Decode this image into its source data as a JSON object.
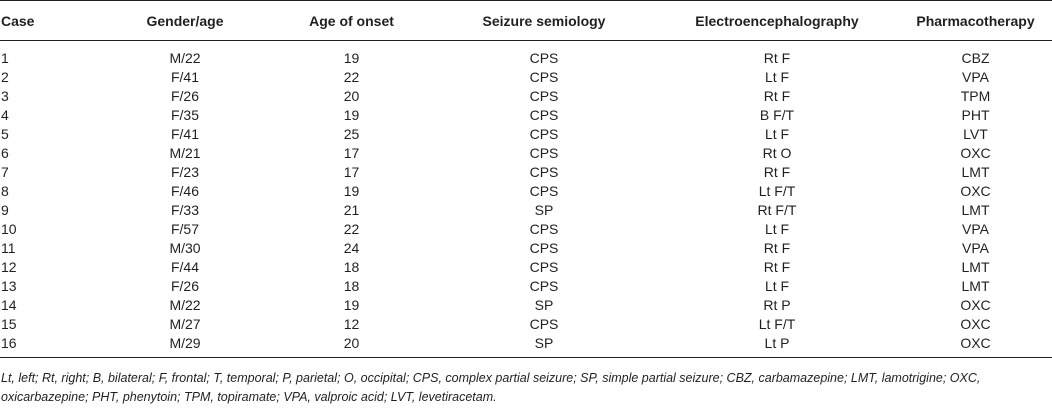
{
  "table": {
    "headers": {
      "case": "Case",
      "gender_age": "Gender/age",
      "age_of_onset": "Age of onset",
      "seizure_semiology": "Seizure semiology",
      "eeg": "Electroencephalography",
      "pharmacotherapy": "Pharmacotherapy"
    },
    "rows": [
      {
        "case": "1",
        "gender_age": "M/22",
        "onset": "19",
        "seizure": "CPS",
        "eeg": "Rt F",
        "pharma": "CBZ"
      },
      {
        "case": "2",
        "gender_age": "F/41",
        "onset": "22",
        "seizure": "CPS",
        "eeg": "Lt F",
        "pharma": "VPA"
      },
      {
        "case": "3",
        "gender_age": "F/26",
        "onset": "20",
        "seizure": "CPS",
        "eeg": "Rt F",
        "pharma": "TPM"
      },
      {
        "case": "4",
        "gender_age": "F/35",
        "onset": "19",
        "seizure": "CPS",
        "eeg": "B F/T",
        "pharma": "PHT"
      },
      {
        "case": "5",
        "gender_age": "F/41",
        "onset": "25",
        "seizure": "CPS",
        "eeg": "Lt F",
        "pharma": "LVT"
      },
      {
        "case": "6",
        "gender_age": "M/21",
        "onset": "17",
        "seizure": "CPS",
        "eeg": "Rt O",
        "pharma": "OXC"
      },
      {
        "case": "7",
        "gender_age": "F/23",
        "onset": "17",
        "seizure": "CPS",
        "eeg": "Rt F",
        "pharma": "LMT"
      },
      {
        "case": "8",
        "gender_age": "F/46",
        "onset": "19",
        "seizure": "CPS",
        "eeg": "Lt F/T",
        "pharma": "OXC"
      },
      {
        "case": "9",
        "gender_age": "F/33",
        "onset": "21",
        "seizure": "SP",
        "eeg": "Rt F/T",
        "pharma": "LMT"
      },
      {
        "case": "10",
        "gender_age": "F/57",
        "onset": "22",
        "seizure": "CPS",
        "eeg": "Lt F",
        "pharma": "VPA"
      },
      {
        "case": "11",
        "gender_age": "M/30",
        "onset": "24",
        "seizure": "CPS",
        "eeg": "Rt F",
        "pharma": "VPA"
      },
      {
        "case": "12",
        "gender_age": "F/44",
        "onset": "18",
        "seizure": "CPS",
        "eeg": "Rt F",
        "pharma": "LMT"
      },
      {
        "case": "13",
        "gender_age": "F/26",
        "onset": "18",
        "seizure": "CPS",
        "eeg": "Lt F",
        "pharma": "LMT"
      },
      {
        "case": "14",
        "gender_age": "M/22",
        "onset": "19",
        "seizure": "SP",
        "eeg": "Rt P",
        "pharma": "OXC"
      },
      {
        "case": "15",
        "gender_age": "M/27",
        "onset": "12",
        "seizure": "CPS",
        "eeg": "Lt F/T",
        "pharma": "OXC"
      },
      {
        "case": "16",
        "gender_age": "M/29",
        "onset": "20",
        "seizure": "SP",
        "eeg": "Lt P",
        "pharma": "OXC"
      }
    ]
  },
  "footnote": "Lt, left; Rt, right; B, bilateral; F, frontal; T, temporal; P, parietal; O, occipital; CPS, complex partial seizure; SP, simple partial seizure; CBZ, carbamazepine; LMT, lamotrigine; OXC, oxicarbazepine; PHT, phenytoin; TPM, topiramate; VPA, valproic acid; LVT, levetiracetam."
}
